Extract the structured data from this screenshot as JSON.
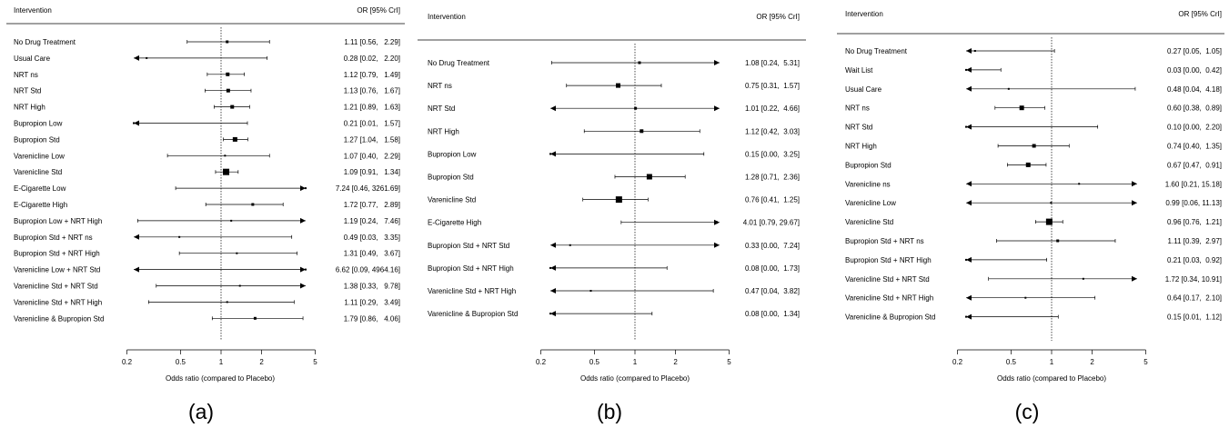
{
  "figure": {
    "header_label": "Intervention",
    "header_value": "OR [95% CrI]",
    "xlabel": "Odds ratio (compared to Placebo)",
    "tick_values": [
      0.2,
      0.5,
      1,
      2,
      5
    ],
    "tick_labels": [
      "0.2",
      "0.5",
      "1",
      "2",
      "5"
    ]
  },
  "chart_data": [
    {
      "type": "forest",
      "panel": "(a)",
      "xlabel": "Odds ratio (compared to Placebo)",
      "x_scale": "log",
      "reference_line": 1,
      "rows": [
        {
          "label": "No Drug Treatment",
          "or": 1.11,
          "lo": 0.56,
          "hi": 2.29,
          "text": "1.11 [0.56,   2.29]",
          "w": 3
        },
        {
          "label": "Usual Care",
          "or": 0.28,
          "lo": 0.02,
          "hi": 2.2,
          "text": "0.28 [0.02,   2.20]",
          "w": 2
        },
        {
          "label": "NRT ns",
          "or": 1.12,
          "lo": 0.79,
          "hi": 1.49,
          "text": "1.12 [0.79,   1.49]",
          "w": 4
        },
        {
          "label": "NRT Std",
          "or": 1.13,
          "lo": 0.76,
          "hi": 1.67,
          "text": "1.13 [0.76,   1.67]",
          "w": 4
        },
        {
          "label": "NRT High",
          "or": 1.21,
          "lo": 0.89,
          "hi": 1.63,
          "text": "1.21 [0.89,   1.63]",
          "w": 4
        },
        {
          "label": "Bupropion Low",
          "or": 0.21,
          "lo": 0.01,
          "hi": 1.57,
          "text": "0.21 [0.01,   1.57]",
          "w": 2
        },
        {
          "label": "Bupropion Std",
          "or": 1.27,
          "lo": 1.04,
          "hi": 1.58,
          "text": "1.27 [1.04,   1.58]",
          "w": 5
        },
        {
          "label": "Varenicline Low",
          "or": 1.07,
          "lo": 0.4,
          "hi": 2.29,
          "text": "1.07 [0.40,   2.29]",
          "w": 2
        },
        {
          "label": "Varenicline Std",
          "or": 1.09,
          "lo": 0.91,
          "hi": 1.34,
          "text": "1.09 [0.91,   1.34]",
          "w": 7
        },
        {
          "label": "E-Cigarette Low",
          "or": 7.24,
          "lo": 0.46,
          "hi": 3261.69,
          "text": "7.24 [0.46, 3261.69]",
          "w": 2
        },
        {
          "label": "E-Cigarette High",
          "or": 1.72,
          "lo": 0.77,
          "hi": 2.89,
          "text": "1.72 [0.77,   2.89]",
          "w": 3
        },
        {
          "label": "Bupropion Low + NRT High",
          "or": 1.19,
          "lo": 0.24,
          "hi": 7.46,
          "text": "1.19 [0.24,   7.46]",
          "w": 2
        },
        {
          "label": "Bupropion Std + NRT ns",
          "or": 0.49,
          "lo": 0.03,
          "hi": 3.35,
          "text": "0.49 [0.03,   3.35]",
          "w": 2
        },
        {
          "label": "Bupropion Std + NRT High",
          "or": 1.31,
          "lo": 0.49,
          "hi": 3.67,
          "text": "1.31 [0.49,   3.67]",
          "w": 2
        },
        {
          "label": "Varenicline Low + NRT Std",
          "or": 6.62,
          "lo": 0.09,
          "hi": 4964.16,
          "text": "6.62 [0.09, 4964.16]",
          "w": 2
        },
        {
          "label": "Varenicline Std + NRT Std",
          "or": 1.38,
          "lo": 0.33,
          "hi": 9.78,
          "text": "1.38 [0.33,   9.78]",
          "w": 2
        },
        {
          "label": "Varenicline Std + NRT High",
          "or": 1.11,
          "lo": 0.29,
          "hi": 3.49,
          "text": "1.11 [0.29,   3.49]",
          "w": 2
        },
        {
          "label": "Varenicline & Bupropion Std",
          "or": 1.79,
          "lo": 0.86,
          "hi": 4.06,
          "text": "1.79 [0.86,   4.06]",
          "w": 3
        }
      ]
    },
    {
      "type": "forest",
      "panel": "(b)",
      "xlabel": "Odds ratio (compared to Placebo)",
      "x_scale": "log",
      "reference_line": 1,
      "rows": [
        {
          "label": "No Drug Treatment",
          "or": 1.08,
          "lo": 0.24,
          "hi": 5.31,
          "text": "1.08 [0.24,  5.31]",
          "w": 3
        },
        {
          "label": "NRT ns",
          "or": 0.75,
          "lo": 0.31,
          "hi": 1.57,
          "text": "0.75 [0.31,  1.57]",
          "w": 5
        },
        {
          "label": "NRT Std",
          "or": 1.01,
          "lo": 0.22,
          "hi": 4.66,
          "text": "1.01 [0.22,  4.66]",
          "w": 3
        },
        {
          "label": "NRT High",
          "or": 1.12,
          "lo": 0.42,
          "hi": 3.03,
          "text": "1.12 [0.42,  3.03]",
          "w": 4
        },
        {
          "label": "Bupropion Low",
          "or": 0.15,
          "lo": 0.0,
          "hi": 3.25,
          "text": "0.15 [0.00,  3.25]",
          "w": 2
        },
        {
          "label": "Bupropion Std",
          "or": 1.28,
          "lo": 0.71,
          "hi": 2.36,
          "text": "1.28 [0.71,  2.36]",
          "w": 6
        },
        {
          "label": "Varenicline Std",
          "or": 0.76,
          "lo": 0.41,
          "hi": 1.25,
          "text": "0.76 [0.41,  1.25]",
          "w": 7
        },
        {
          "label": "E-Cigarette High",
          "or": 4.01,
          "lo": 0.79,
          "hi": 29.67,
          "text": "4.01 [0.79, 29.67]",
          "w": 3
        },
        {
          "label": "Bupropion Std + NRT Std",
          "or": 0.33,
          "lo": 0.0,
          "hi": 7.24,
          "text": "0.33 [0.00,  7.24]",
          "w": 2
        },
        {
          "label": "Bupropion Std + NRT High",
          "or": 0.08,
          "lo": 0.0,
          "hi": 1.73,
          "text": "0.08 [0.00,  1.73]",
          "w": 2
        },
        {
          "label": "Varenicline Std + NRT High",
          "or": 0.47,
          "lo": 0.04,
          "hi": 3.82,
          "text": "0.47 [0.04,  3.82]",
          "w": 2
        },
        {
          "label": "Varenicline & Bupropion Std",
          "or": 0.08,
          "lo": 0.0,
          "hi": 1.34,
          "text": "0.08 [0.00,  1.34]",
          "w": 2
        }
      ]
    },
    {
      "type": "forest",
      "panel": "(c)",
      "xlabel": "Odds ratio (compared to Placebo)",
      "x_scale": "log",
      "reference_line": 1,
      "rows": [
        {
          "label": "No Drug Treatment",
          "or": 0.27,
          "lo": 0.05,
          "hi": 1.05,
          "text": "0.27 [0.05,  1.05]",
          "w": 2
        },
        {
          "label": "Wait List",
          "or": 0.03,
          "lo": 0.0,
          "hi": 0.42,
          "text": "0.03 [0.00,  0.42]",
          "w": 2
        },
        {
          "label": "Usual Care",
          "or": 0.48,
          "lo": 0.04,
          "hi": 4.18,
          "text": "0.48 [0.04,  4.18]",
          "w": 2
        },
        {
          "label": "NRT ns",
          "or": 0.6,
          "lo": 0.38,
          "hi": 0.89,
          "text": "0.60 [0.38,  0.89]",
          "w": 5
        },
        {
          "label": "NRT Std",
          "or": 0.1,
          "lo": 0.0,
          "hi": 2.2,
          "text": "0.10 [0.00,  2.20]",
          "w": 2
        },
        {
          "label": "NRT High",
          "or": 0.74,
          "lo": 0.4,
          "hi": 1.35,
          "text": "0.74 [0.40,  1.35]",
          "w": 4
        },
        {
          "label": "Bupropion Std",
          "or": 0.67,
          "lo": 0.47,
          "hi": 0.91,
          "text": "0.67 [0.47,  0.91]",
          "w": 5
        },
        {
          "label": "Varenicline ns",
          "or": 1.6,
          "lo": 0.21,
          "hi": 15.18,
          "text": "1.60 [0.21, 15.18]",
          "w": 2
        },
        {
          "label": "Varenicline Low",
          "or": 0.99,
          "lo": 0.06,
          "hi": 11.13,
          "text": "0.99 [0.06, 11.13]",
          "w": 2
        },
        {
          "label": "Varenicline Std",
          "or": 0.96,
          "lo": 0.76,
          "hi": 1.21,
          "text": "0.96 [0.76,  1.21]",
          "w": 7
        },
        {
          "label": "Bupropion Std + NRT ns",
          "or": 1.11,
          "lo": 0.39,
          "hi": 2.97,
          "text": "1.11 [0.39,  2.97]",
          "w": 3
        },
        {
          "label": "Bupropion Std + NRT High",
          "or": 0.21,
          "lo": 0.03,
          "hi": 0.92,
          "text": "0.21 [0.03,  0.92]",
          "w": 2
        },
        {
          "label": "Varenicline Std + NRT Std",
          "or": 1.72,
          "lo": 0.34,
          "hi": 10.91,
          "text": "1.72 [0.34, 10.91]",
          "w": 2
        },
        {
          "label": "Varenicline Std + NRT High",
          "or": 0.64,
          "lo": 0.17,
          "hi": 2.1,
          "text": "0.64 [0.17,  2.10]",
          "w": 2
        },
        {
          "label": "Varenicline & Bupropion Std",
          "or": 0.15,
          "lo": 0.01,
          "hi": 1.12,
          "text": "0.15 [0.01,  1.12]",
          "w": 2
        }
      ]
    }
  ]
}
